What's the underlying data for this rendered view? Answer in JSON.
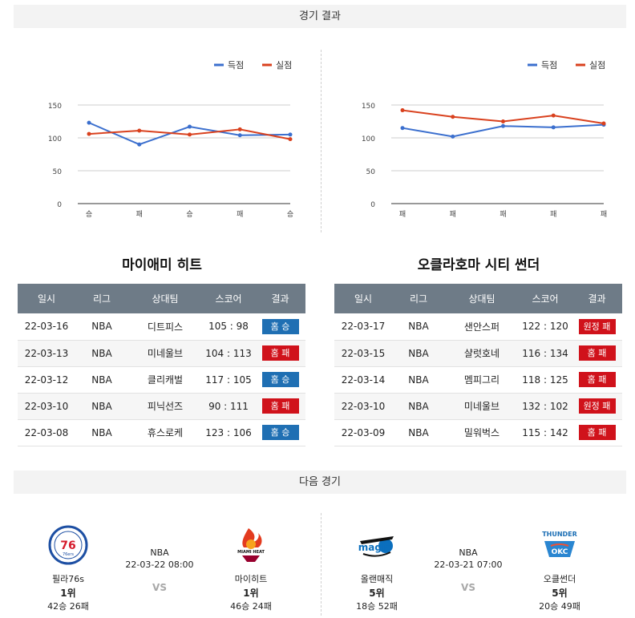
{
  "sections": {
    "results_title": "경기 결과",
    "next_title": "다음 경기"
  },
  "legend": {
    "scored": "득점",
    "conceded": "실점"
  },
  "colors": {
    "scored": "#3b6fce",
    "conceded": "#d9411e",
    "win": "#1f6fb3",
    "loss": "#d0121b",
    "header": "#6e7b87"
  },
  "chart_data": [
    {
      "type": "line",
      "categories": [
        "승",
        "패",
        "승",
        "패",
        "승"
      ],
      "ylim": [
        0,
        150
      ],
      "yticks": [
        0,
        50,
        100,
        150
      ],
      "legend_position": "top-right",
      "grid": true,
      "series": [
        {
          "name": "득점",
          "values": [
            123,
            90,
            117,
            104,
            105
          ]
        },
        {
          "name": "실점",
          "values": [
            106,
            111,
            105,
            113,
            98
          ]
        }
      ]
    },
    {
      "type": "line",
      "categories": [
        "패",
        "패",
        "패",
        "패",
        "패"
      ],
      "ylim": [
        0,
        150
      ],
      "yticks": [
        0,
        50,
        100,
        150
      ],
      "legend_position": "top-right",
      "grid": true,
      "series": [
        {
          "name": "득점",
          "values": [
            115,
            102,
            118,
            116,
            120
          ]
        },
        {
          "name": "실점",
          "values": [
            142,
            132,
            125,
            134,
            122
          ]
        }
      ]
    }
  ],
  "teams": {
    "left": {
      "title": "마이애미 히트",
      "headers": [
        "일시",
        "리그",
        "상대팀",
        "스코어",
        "결과"
      ],
      "rows": [
        {
          "date": "22-03-16",
          "league": "NBA",
          "opponent": "디트피스",
          "score": "105 : 98",
          "result": "홈 승",
          "win": true
        },
        {
          "date": "22-03-13",
          "league": "NBA",
          "opponent": "미네울브",
          "score": "104 : 113",
          "result": "홈 패",
          "win": false
        },
        {
          "date": "22-03-12",
          "league": "NBA",
          "opponent": "클리캐벌",
          "score": "117 : 105",
          "result": "홈 승",
          "win": true
        },
        {
          "date": "22-03-10",
          "league": "NBA",
          "opponent": "피닉선즈",
          "score": "90 : 111",
          "result": "홈 패",
          "win": false
        },
        {
          "date": "22-03-08",
          "league": "NBA",
          "opponent": "휴스로케",
          "score": "123 : 106",
          "result": "홈 승",
          "win": true
        }
      ]
    },
    "right": {
      "title": "오클라호마 시티 썬더",
      "headers": [
        "일시",
        "리그",
        "상대팀",
        "스코어",
        "결과"
      ],
      "rows": [
        {
          "date": "22-03-17",
          "league": "NBA",
          "opponent": "샌안스퍼",
          "score": "122 : 120",
          "result": "원정 패",
          "win": false
        },
        {
          "date": "22-03-15",
          "league": "NBA",
          "opponent": "샬럿호네",
          "score": "116 : 134",
          "result": "홈 패",
          "win": false
        },
        {
          "date": "22-03-14",
          "league": "NBA",
          "opponent": "멤피그리",
          "score": "118 : 125",
          "result": "홈 패",
          "win": false
        },
        {
          "date": "22-03-10",
          "league": "NBA",
          "opponent": "미네울브",
          "score": "132 : 102",
          "result": "원정 패",
          "win": false
        },
        {
          "date": "22-03-09",
          "league": "NBA",
          "opponent": "밀워벅스",
          "score": "115 : 142",
          "result": "홈 패",
          "win": false
        }
      ]
    }
  },
  "next_games": [
    {
      "league": "NBA",
      "time": "22-03-22 08:00",
      "vs": "VS",
      "home": {
        "name": "필라76s",
        "rank": "1위",
        "record": "42승 26패",
        "logo_text": "76ers",
        "logo_icon": "sixers-logo-icon"
      },
      "away": {
        "name": "마이히트",
        "rank": "1위",
        "record": "46승 24패",
        "logo_text": "MIAMI HEAT",
        "logo_icon": "heat-logo-icon"
      }
    },
    {
      "league": "NBA",
      "time": "22-03-21 07:00",
      "vs": "VS",
      "home": {
        "name": "올랜매직",
        "rank": "5위",
        "record": "18승 52패",
        "logo_text": "magic",
        "logo_icon": "magic-logo-icon"
      },
      "away": {
        "name": "오클썬더",
        "rank": "5위",
        "record": "20승 49패",
        "logo_text": "THUNDER",
        "logo_icon": "thunder-logo-icon"
      }
    }
  ]
}
